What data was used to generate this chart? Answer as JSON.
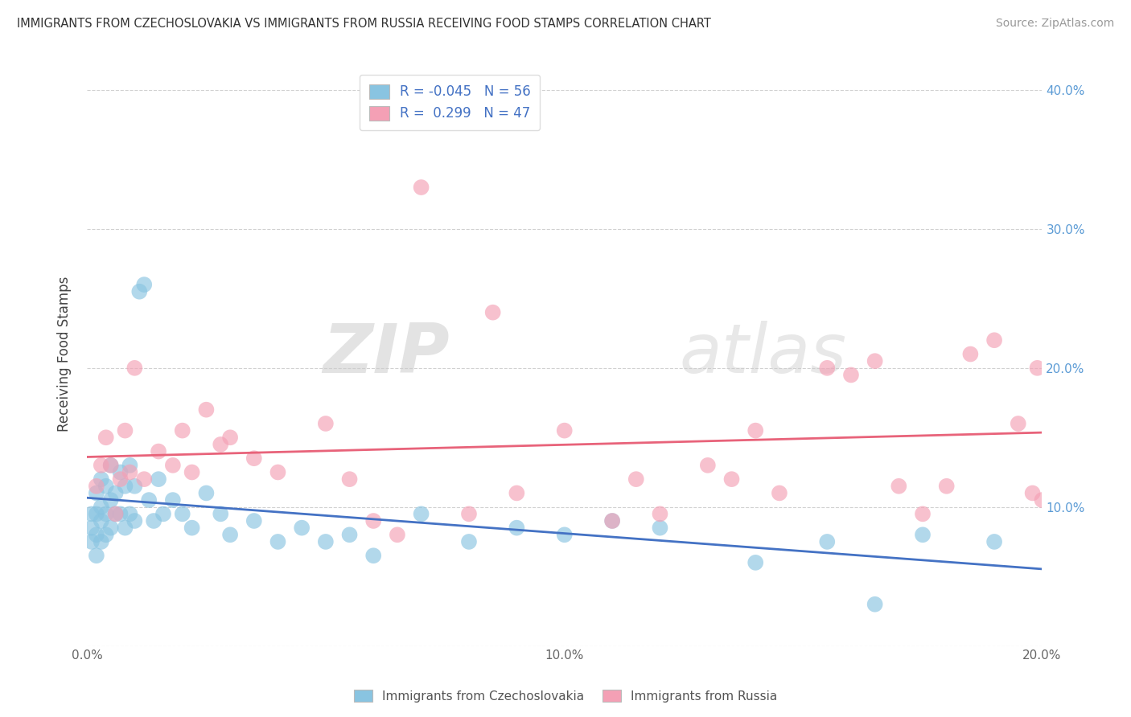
{
  "title": "IMMIGRANTS FROM CZECHOSLOVAKIA VS IMMIGRANTS FROM RUSSIA RECEIVING FOOD STAMPS CORRELATION CHART",
  "source": "Source: ZipAtlas.com",
  "ylabel": "Receiving Food Stamps",
  "legend_label1": "Immigrants from Czechoslovakia",
  "legend_label2": "Immigrants from Russia",
  "R1": -0.045,
  "N1": 56,
  "R2": 0.299,
  "N2": 47,
  "xlim": [
    0.0,
    0.2
  ],
  "ylim": [
    0.0,
    0.42
  ],
  "xticks": [
    0.0,
    0.05,
    0.1,
    0.15,
    0.2
  ],
  "yticks": [
    0.0,
    0.1,
    0.2,
    0.3,
    0.4
  ],
  "xtick_labels": [
    "0.0%",
    "",
    "10.0%",
    "",
    "20.0%"
  ],
  "ytick_labels_right": [
    "",
    "10.0%",
    "20.0%",
    "30.0%",
    "40.0%"
  ],
  "color_blue": "#89c4e1",
  "color_pink": "#f4a0b5",
  "line_color_blue": "#4472c4",
  "line_color_pink": "#e8637a",
  "watermark_zip": "ZIP",
  "watermark_atlas": "atlas",
  "scatter_blue_x": [
    0.001,
    0.001,
    0.001,
    0.002,
    0.002,
    0.002,
    0.002,
    0.003,
    0.003,
    0.003,
    0.003,
    0.004,
    0.004,
    0.004,
    0.005,
    0.005,
    0.005,
    0.006,
    0.006,
    0.007,
    0.007,
    0.008,
    0.008,
    0.009,
    0.009,
    0.01,
    0.01,
    0.011,
    0.012,
    0.013,
    0.014,
    0.015,
    0.016,
    0.018,
    0.02,
    0.022,
    0.025,
    0.028,
    0.03,
    0.035,
    0.04,
    0.045,
    0.05,
    0.055,
    0.06,
    0.07,
    0.08,
    0.09,
    0.1,
    0.11,
    0.12,
    0.14,
    0.155,
    0.165,
    0.175,
    0.19
  ],
  "scatter_blue_y": [
    0.095,
    0.085,
    0.075,
    0.11,
    0.095,
    0.08,
    0.065,
    0.12,
    0.1,
    0.09,
    0.075,
    0.115,
    0.095,
    0.08,
    0.13,
    0.105,
    0.085,
    0.11,
    0.095,
    0.125,
    0.095,
    0.115,
    0.085,
    0.13,
    0.095,
    0.115,
    0.09,
    0.255,
    0.26,
    0.105,
    0.09,
    0.12,
    0.095,
    0.105,
    0.095,
    0.085,
    0.11,
    0.095,
    0.08,
    0.09,
    0.075,
    0.085,
    0.075,
    0.08,
    0.065,
    0.095,
    0.075,
    0.085,
    0.08,
    0.09,
    0.085,
    0.06,
    0.075,
    0.03,
    0.08,
    0.075
  ],
  "scatter_pink_x": [
    0.002,
    0.003,
    0.004,
    0.005,
    0.006,
    0.007,
    0.008,
    0.009,
    0.01,
    0.012,
    0.015,
    0.018,
    0.02,
    0.022,
    0.025,
    0.028,
    0.03,
    0.035,
    0.04,
    0.05,
    0.055,
    0.06,
    0.065,
    0.07,
    0.08,
    0.085,
    0.09,
    0.1,
    0.11,
    0.115,
    0.12,
    0.13,
    0.135,
    0.14,
    0.145,
    0.155,
    0.16,
    0.165,
    0.17,
    0.175,
    0.18,
    0.185,
    0.19,
    0.195,
    0.198,
    0.199,
    0.2
  ],
  "scatter_pink_y": [
    0.115,
    0.13,
    0.15,
    0.13,
    0.095,
    0.12,
    0.155,
    0.125,
    0.2,
    0.12,
    0.14,
    0.13,
    0.155,
    0.125,
    0.17,
    0.145,
    0.15,
    0.135,
    0.125,
    0.16,
    0.12,
    0.09,
    0.08,
    0.33,
    0.095,
    0.24,
    0.11,
    0.155,
    0.09,
    0.12,
    0.095,
    0.13,
    0.12,
    0.155,
    0.11,
    0.2,
    0.195,
    0.205,
    0.115,
    0.095,
    0.115,
    0.21,
    0.22,
    0.16,
    0.11,
    0.2,
    0.105
  ]
}
